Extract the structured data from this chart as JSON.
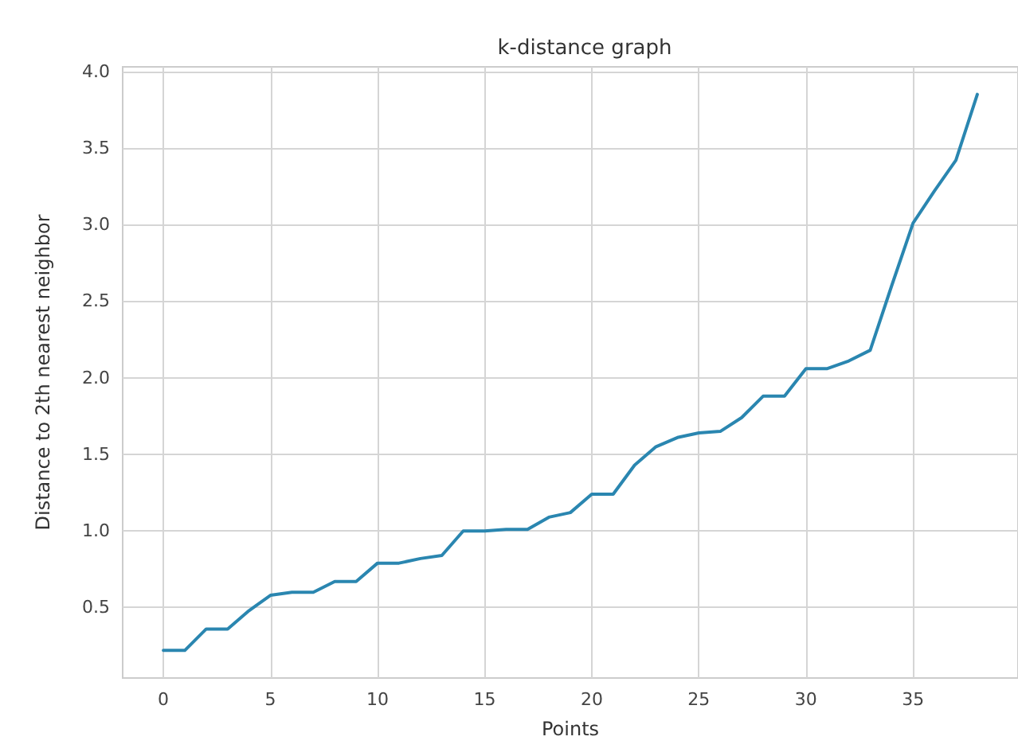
{
  "chart_data": {
    "type": "line",
    "title": "k-distance graph",
    "xlabel": "Points",
    "ylabel": "Distance to 2th nearest neighbor",
    "x": [
      0,
      1,
      2,
      3,
      4,
      5,
      6,
      7,
      8,
      9,
      10,
      11,
      12,
      13,
      14,
      15,
      16,
      17,
      18,
      19,
      20,
      21,
      22,
      23,
      24,
      25,
      26,
      27,
      28,
      29,
      30,
      31,
      32,
      33,
      34,
      35,
      36,
      37,
      38
    ],
    "series": [
      {
        "color": "#2a86b0",
        "values": [
          0.22,
          0.22,
          0.36,
          0.36,
          0.48,
          0.58,
          0.6,
          0.6,
          0.67,
          0.67,
          0.79,
          0.79,
          0.82,
          0.84,
          1.0,
          1.0,
          1.01,
          1.01,
          1.09,
          1.12,
          1.24,
          1.24,
          1.43,
          1.55,
          1.61,
          1.64,
          1.65,
          1.74,
          1.88,
          1.88,
          2.06,
          2.06,
          2.11,
          2.18,
          2.6,
          3.01,
          3.22,
          3.42,
          3.85
        ]
      }
    ],
    "xlim": [
      -1.9,
      39.9
    ],
    "ylim": [
      0.04,
      4.03
    ],
    "xticks": [
      0,
      5,
      10,
      15,
      20,
      25,
      30,
      35
    ],
    "yticks": [
      0.5,
      {
        "value": 1,
        "label": "1.0"
      },
      1.5,
      {
        "value": 2,
        "label": "2.0"
      },
      2.5,
      {
        "value": 3,
        "label": "3.0"
      },
      3.5,
      {
        "value": 4,
        "label": "4.0"
      }
    ],
    "grid": true,
    "marker": "none",
    "line_style": "solid"
  }
}
